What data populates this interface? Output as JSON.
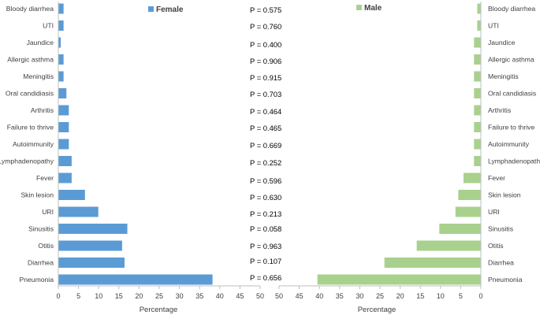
{
  "chart_data": [
    {
      "type": "bar",
      "orientation": "horizontal",
      "categories": [
        "Bloody diarrhea",
        "UTI",
        "Jaundice",
        "Allergic asthma",
        "Meningitis",
        "Oral candidiasis",
        "Arthritis",
        "Failure to thrive",
        "Autoimmunity",
        "Lymphadenopathy",
        "Fever",
        "Skin lesion",
        "URI",
        "Sinusitis",
        "Otitis",
        "Diarrhea",
        "Pneumonia"
      ],
      "series": [
        {
          "name": "Female",
          "color": "#5b9bd5",
          "values": [
            1.3,
            1.3,
            0.6,
            1.3,
            1.3,
            2.0,
            2.6,
            2.6,
            2.6,
            3.3,
            3.3,
            6.6,
            9.9,
            17.1,
            15.8,
            16.4,
            38.2
          ]
        }
      ],
      "xlabel": "Percentage",
      "xlim": [
        0,
        50
      ],
      "xticks": [
        0,
        5,
        10,
        15,
        20,
        25,
        30,
        35,
        40,
        45,
        50
      ],
      "legend": "top-right",
      "grid": false
    },
    {
      "type": "bar",
      "orientation": "horizontal",
      "x_reversed": true,
      "categories": [
        "Bloody diarrhea",
        "UTI",
        "Jaundice",
        "Allergic asthma",
        "Meningitis",
        "Oral candidiasis",
        "Arthritis",
        "Failure to thrive",
        "Autoimmunity",
        "Lymphadenopathy",
        "Fever",
        "Skin lesion",
        "URI",
        "Sinusitis",
        "Otitis",
        "Diarrhea",
        "Pneumonia"
      ],
      "series": [
        {
          "name": "Male",
          "color": "#a9d18e",
          "values": [
            0.9,
            0.9,
            1.7,
            1.7,
            1.7,
            1.7,
            1.7,
            1.7,
            1.7,
            1.7,
            4.3,
            5.6,
            6.3,
            10.3,
            15.9,
            23.9,
            40.5
          ]
        }
      ],
      "xlabel": "Percentage",
      "xlim": [
        0,
        50
      ],
      "xticks": [
        50,
        45,
        40,
        35,
        30,
        25,
        20,
        15,
        10,
        5,
        0
      ],
      "legend": "top-left",
      "grid": false
    }
  ],
  "p_values": [
    "P = 0.575",
    "P = 0.760",
    "P = 0.400",
    "P = 0.906",
    "P = 0.915",
    "P = 0.703",
    "P = 0.464",
    "P = 0.465",
    "P = 0.669",
    "P = 0.252",
    "P = 0.596",
    "P = 0.630",
    "P = 0.213",
    "P = 0.058",
    "P = 0.963",
    "P = 0.107",
    "P = 0.656"
  ],
  "colors": {
    "axis": "#bfbfbf",
    "text": "#404040"
  }
}
